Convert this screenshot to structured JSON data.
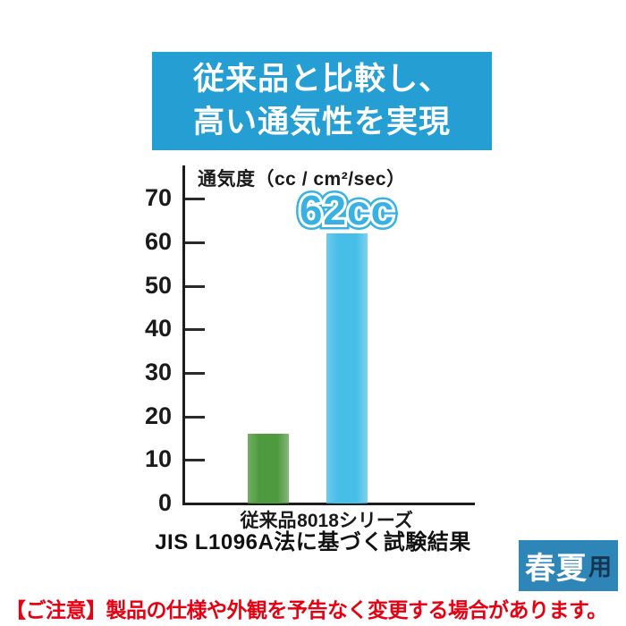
{
  "banner": {
    "line1": "従来品と比較し、",
    "line2": "高い通気性を実現",
    "bg_color": "#259fd3",
    "text_color": "#ffffff"
  },
  "chart_data": {
    "type": "bar",
    "title": "通気度（cc / cm²/sec）",
    "categories": [
      "従来品",
      "8018シリーズ"
    ],
    "values": [
      16,
      62
    ],
    "bar_colors": [
      "#4e9a3e",
      "#47bee8"
    ],
    "ylim": [
      0,
      70
    ],
    "yticks": [
      70,
      60,
      50,
      40,
      30,
      20,
      10,
      0
    ],
    "grid": false,
    "legend": false,
    "annotation": {
      "text": "62cc",
      "target": "8018シリーズ",
      "color": "#39b2e2"
    },
    "caption": "JIS L1096A法に基づく試験結果"
  },
  "badge": {
    "text_main": "春夏",
    "text_suffix": "用",
    "bg_color": "#2e86b8",
    "main_color": "#ffffff",
    "suffix_color": "#173450"
  },
  "notice": {
    "text": "【ご注意】製品の仕様や外観を予告なく変更する場合があります。",
    "color": "#e60012"
  }
}
